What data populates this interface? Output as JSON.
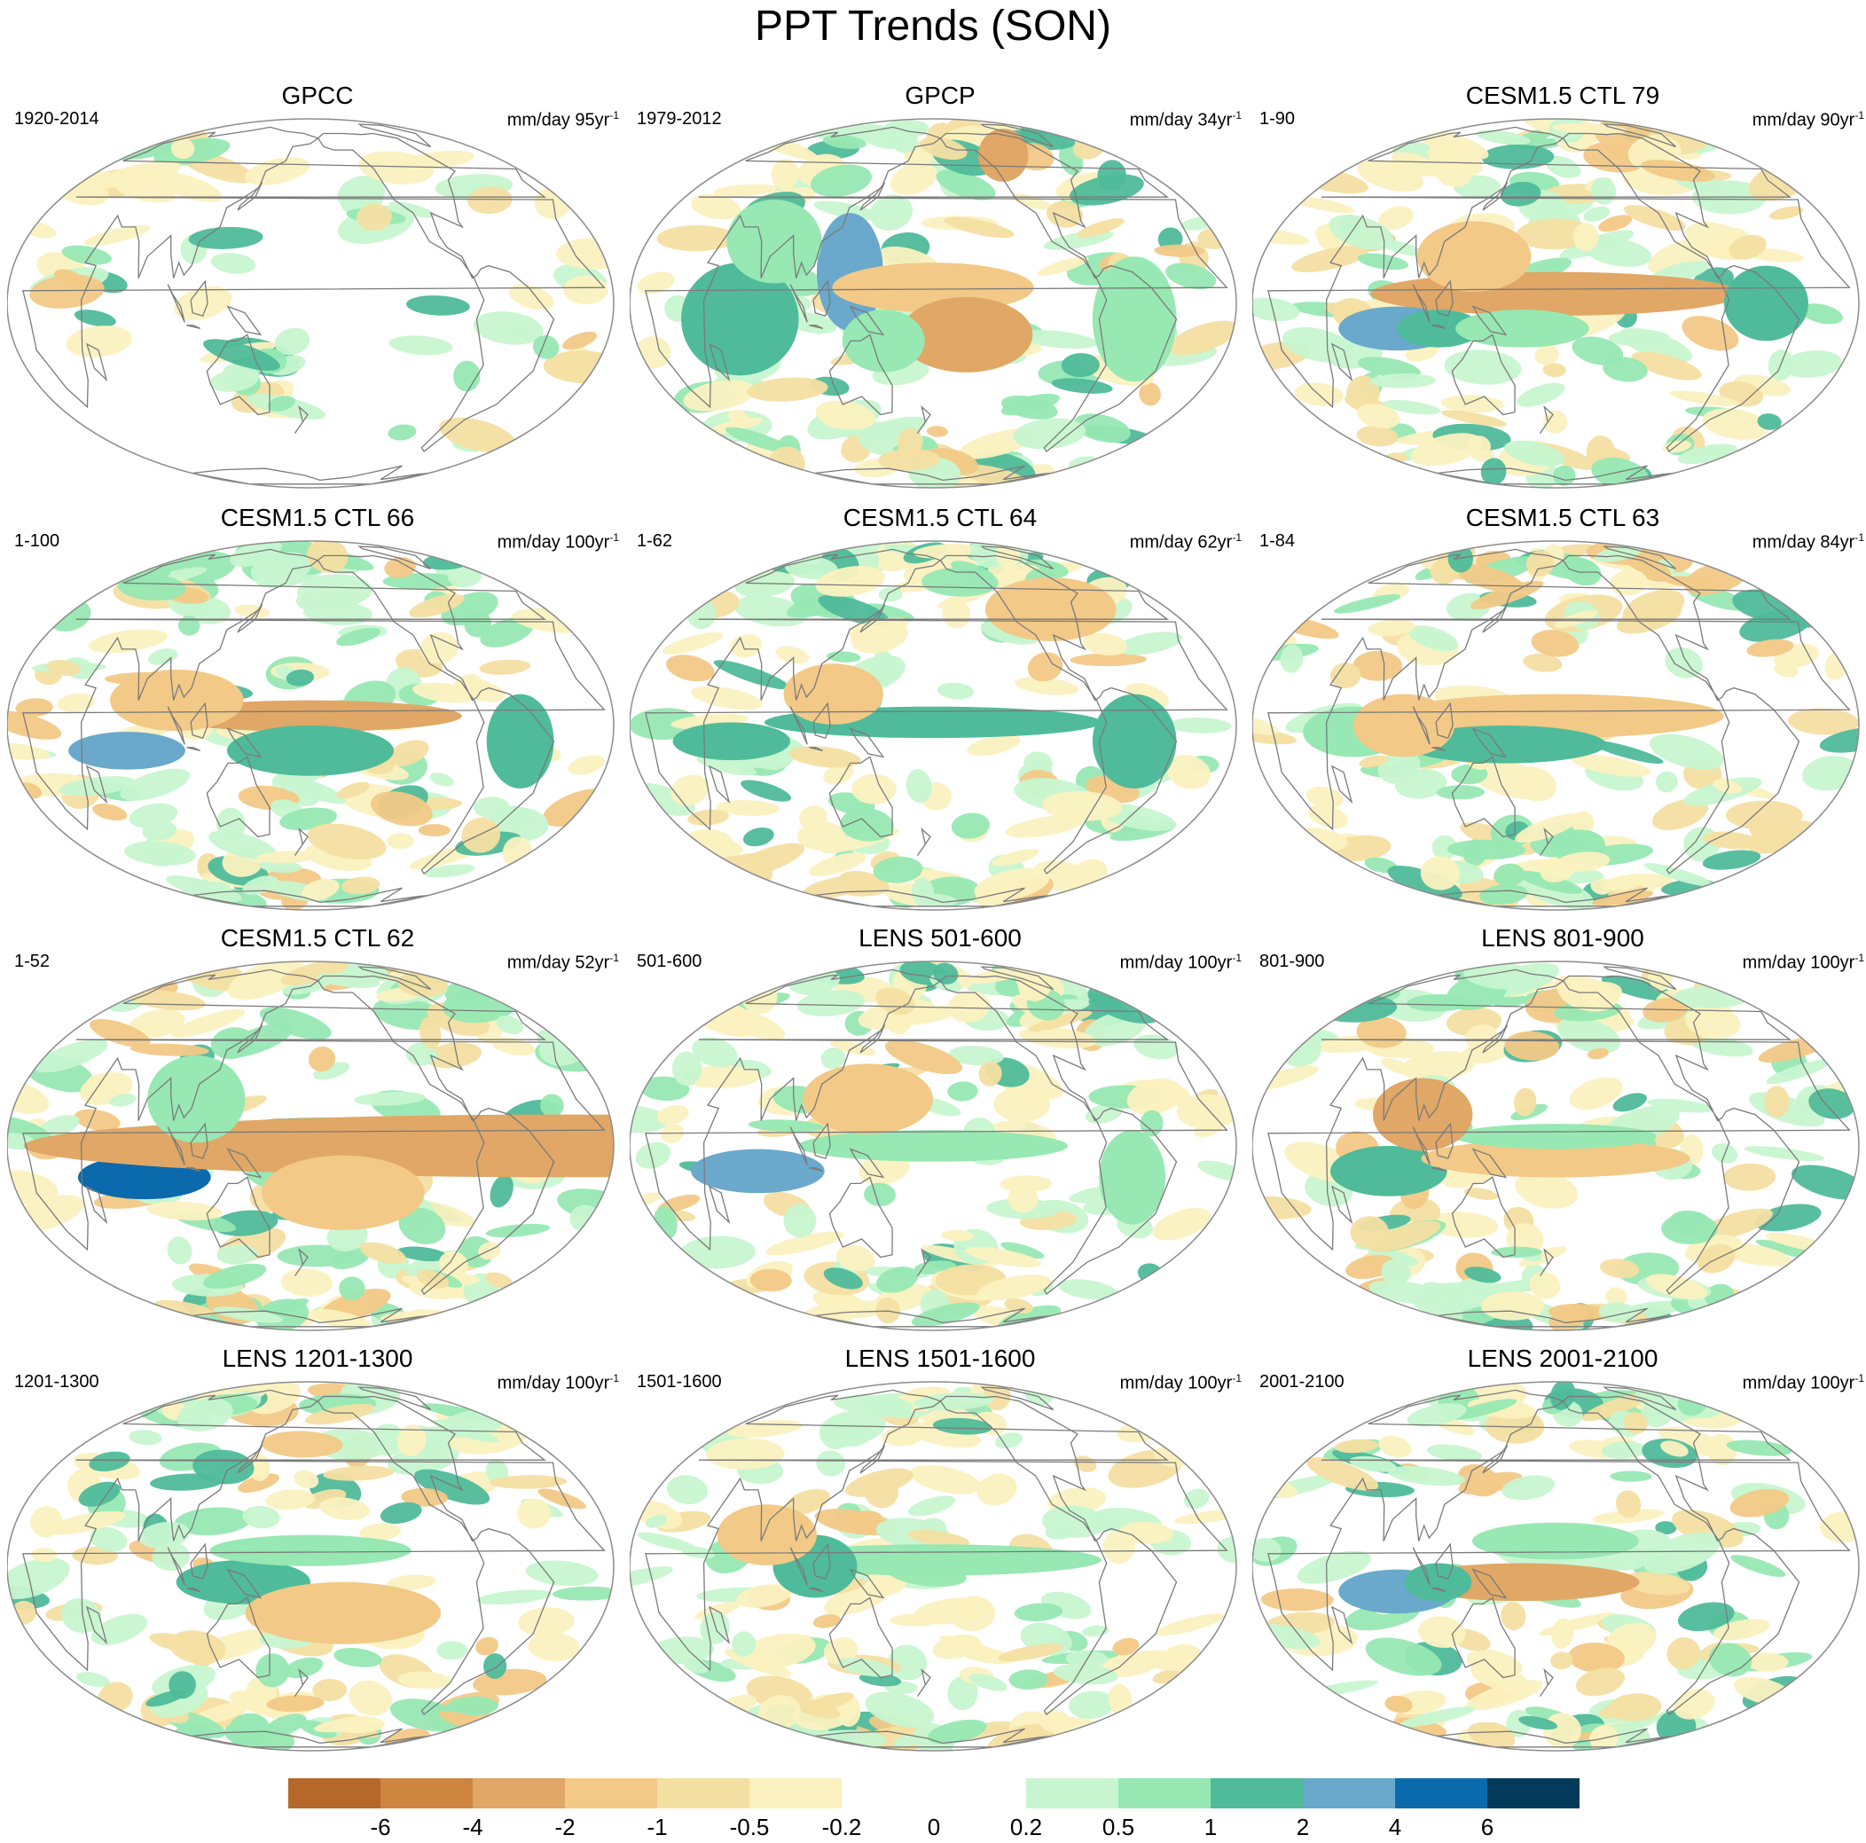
{
  "figure": {
    "title": "PPT Trends (SON)"
  },
  "panels": [
    {
      "title": "GPCC",
      "period": "1920-2014",
      "units": "mm/day 95yr",
      "units_exp": "-1"
    },
    {
      "title": "GPCP",
      "period": "1979-2012",
      "units": "mm/day 34yr",
      "units_exp": "-1"
    },
    {
      "title": "CESM1.5 CTL 79",
      "period": "1-90",
      "units": "mm/day 90yr",
      "units_exp": "-1"
    },
    {
      "title": "CESM1.5 CTL 66",
      "period": "1-100",
      "units": "mm/day 100yr",
      "units_exp": "-1"
    },
    {
      "title": "CESM1.5 CTL 64",
      "period": "1-62",
      "units": "mm/day 62yr",
      "units_exp": "-1"
    },
    {
      "title": "CESM1.5 CTL 63",
      "period": "1-84",
      "units": "mm/day 84yr",
      "units_exp": "-1"
    },
    {
      "title": "CESM1.5 CTL 62",
      "period": "1-52",
      "units": "mm/day 52yr",
      "units_exp": "-1"
    },
    {
      "title": "LENS 501-600",
      "period": "501-600",
      "units": "mm/day 100yr",
      "units_exp": "-1"
    },
    {
      "title": "LENS 801-900",
      "period": "801-900",
      "units": "mm/day 100yr",
      "units_exp": "-1"
    },
    {
      "title": "LENS 1201-1300",
      "period": "1201-1300",
      "units": "mm/day 100yr",
      "units_exp": "-1"
    },
    {
      "title": "LENS 1501-1600",
      "period": "1501-1600",
      "units": "mm/day 100yr",
      "units_exp": "-1"
    },
    {
      "title": "LENS 2001-2100",
      "period": "2001-2100",
      "units": "mm/day 100yr",
      "units_exp": "-1"
    }
  ],
  "colorbar": {
    "colors": [
      "#b5682a",
      "#cd8540",
      "#e0a766",
      "#f2c987",
      "#f4dfa2",
      "#fbf1c0",
      "#ffffff",
      "#ffffff",
      "#c7f5d0",
      "#97e8b3",
      "#4fbb9a",
      "#6aa9cb",
      "#0a6aac",
      "#033a5a"
    ],
    "labels": [
      "-6",
      "-4",
      "-2",
      "-1",
      "-0.5",
      "-0.2",
      "0",
      "0.2",
      "0.5",
      "1",
      "2",
      "4",
      "6"
    ]
  },
  "style": {
    "coast_color": "#7a7a7a",
    "outline_color": "#8c8c8c"
  }
}
